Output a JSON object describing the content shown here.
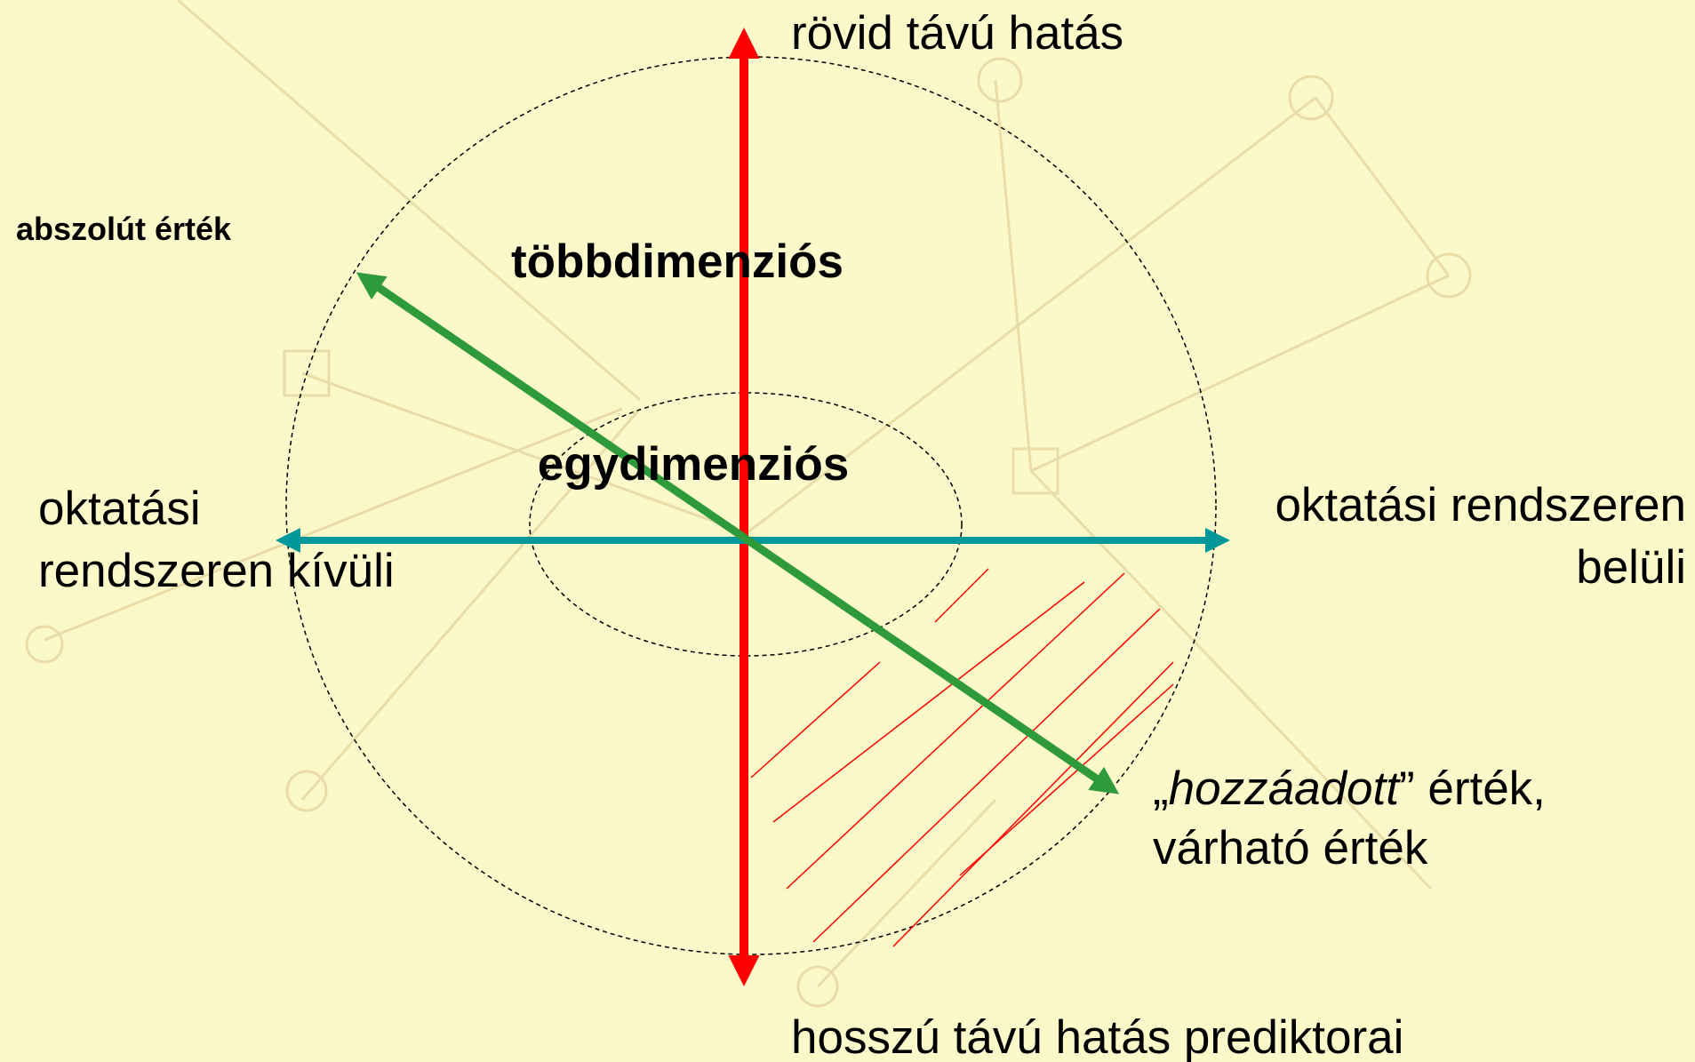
{
  "axes": {
    "top": "rövid távú hatás",
    "bottom": "hosszú távú hatás prediktorai",
    "left": [
      "oktatási",
      "rendszeren kívüli"
    ],
    "right": [
      "oktatási rendszeren",
      "belüli"
    ],
    "diagonal_start": "abszolút érték",
    "diagonal_end": {
      "quote_open": "„",
      "italic": "hozzáadott",
      "rest": "” érték,",
      "line2": "várható érték"
    }
  },
  "regions": {
    "outer": "többdimenziós",
    "inner": "egydimenziós"
  }
}
